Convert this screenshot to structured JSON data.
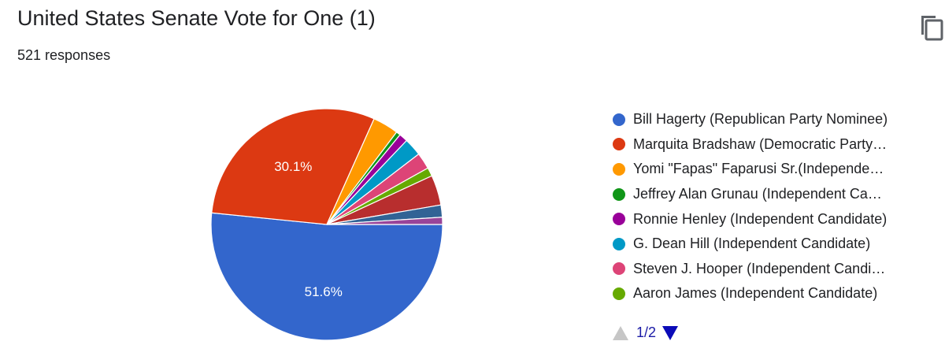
{
  "header": {
    "title": "United States Senate Vote for One (1)",
    "responses": "521 responses"
  },
  "copy_icon": "copy-icon",
  "pager": {
    "page_label": "1/2",
    "prev_icon": "triangle-up-icon",
    "next_icon": "triangle-down-icon"
  },
  "chart_data": {
    "type": "pie",
    "title": "United States Senate Vote for One (1)",
    "legend_position": "right",
    "slices": [
      {
        "label": "Bill Hagerty (Republican Party Nominee)",
        "value": 51.6,
        "display_label": "51.6%",
        "color": "#3366cc"
      },
      {
        "label": "Marquita Bradshaw (Democratic Party Nominee)",
        "value": 30.1,
        "display_label": "30.1%",
        "color": "#dc3912"
      },
      {
        "label": "Yomi \"Fapas\" Faparusi Sr.(Independent Candidate)",
        "value": 3.6,
        "display_label": "",
        "color": "#ff9900"
      },
      {
        "label": "Jeffrey Alan Grunau (Independent Candidate)",
        "value": 0.6,
        "display_label": "",
        "color": "#109618"
      },
      {
        "label": "Ronnie Henley (Independent Candidate)",
        "value": 1.2,
        "display_label": "",
        "color": "#990099"
      },
      {
        "label": "G. Dean Hill (Independent Candidate)",
        "value": 2.5,
        "display_label": "",
        "color": "#0099c6"
      },
      {
        "label": "Steven J. Hooper (Independent Candidate)",
        "value": 2.3,
        "display_label": "",
        "color": "#dd4477"
      },
      {
        "label": "Aaron James (Independent Candidate)",
        "value": 1.2,
        "display_label": "",
        "color": "#66aa00"
      },
      {
        "label": "",
        "value": 4.2,
        "display_label": "",
        "color": "#b82e2e"
      },
      {
        "label": "",
        "value": 1.7,
        "display_label": "",
        "color": "#316395"
      },
      {
        "label": "",
        "value": 1.0,
        "display_label": "",
        "color": "#994499"
      }
    ],
    "legend_entries": [
      "Bill Hagerty (Republican Party Nominee)",
      "Marquita Bradshaw (Democratic Party…",
      "Yomi \"Fapas\" Faparusi Sr.(Independe…",
      "Jeffrey Alan Grunau (Independent Ca…",
      "Ronnie Henley (Independent Candidate)",
      "G. Dean Hill (Independent Candidate)",
      "Steven J. Hooper (Independent Candi…",
      "Aaron James (Independent Candidate)"
    ]
  }
}
